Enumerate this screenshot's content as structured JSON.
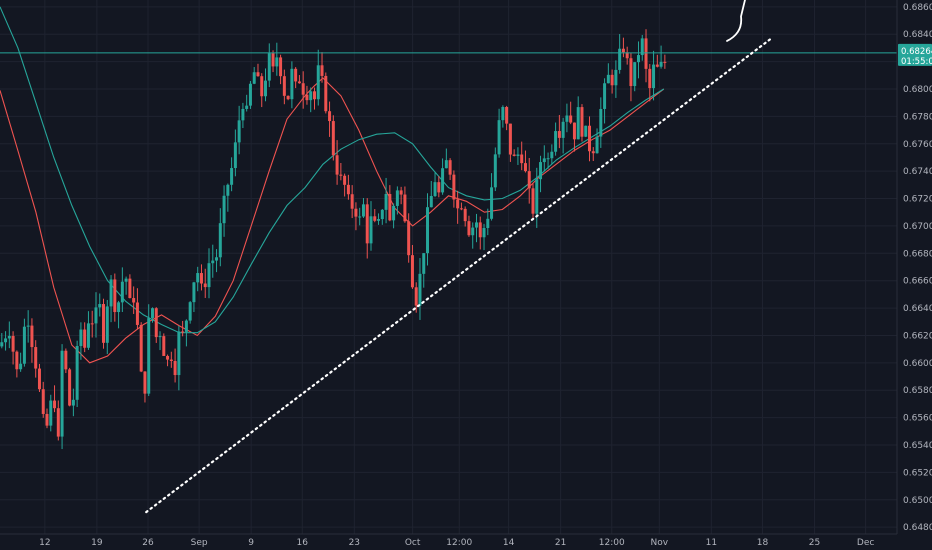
{
  "chart_data": {
    "type": "candlestick",
    "instrument_note": "",
    "y_axis": {
      "min": 0.6475,
      "max": 0.6865,
      "ticks": [
        "0.68600",
        "0.68400",
        "0.68200",
        "0.68000",
        "0.67800",
        "0.67600",
        "0.67400",
        "0.67200",
        "0.67000",
        "0.66800",
        "0.66600",
        "0.66400",
        "0.66200",
        "0.66000",
        "0.65800",
        "0.65600",
        "0.65400",
        "0.65200",
        "0.65000",
        "0.64800"
      ],
      "tick_values": [
        0.686,
        0.684,
        0.682,
        0.68,
        0.678,
        0.676,
        0.674,
        0.672,
        0.67,
        0.668,
        0.666,
        0.664,
        0.662,
        0.66,
        0.658,
        0.656,
        0.654,
        0.652,
        0.65,
        0.648
      ]
    },
    "x_axis": {
      "ticks": [
        "12",
        "19",
        "26",
        "Sep",
        "9",
        "16",
        "23",
        "Oct",
        "12:00",
        "14",
        "21",
        "12:00",
        "Nov",
        "11",
        "18",
        "25",
        "Dec"
      ],
      "tick_positions": [
        0.05,
        0.108,
        0.165,
        0.222,
        0.28,
        0.337,
        0.395,
        0.46,
        0.512,
        0.567,
        0.625,
        0.682,
        0.735,
        0.793,
        0.85,
        0.908,
        0.965
      ]
    },
    "current_price": {
      "label": "0.68264",
      "value": 0.68264,
      "countdown": "01:55:01",
      "color": "#26a69a"
    },
    "horizontal_line": {
      "value": 0.68264,
      "color": "#26a69a"
    },
    "trendline": {
      "style": "dotted",
      "color": "#ffffff",
      "start": {
        "t": 0.163,
        "price": 0.6491
      },
      "end": {
        "t": 0.86,
        "price": 0.6837
      }
    },
    "arrow_sketch": {
      "color": "#ffffff",
      "from_price": 0.6838,
      "to_price": 0.6868
    },
    "moving_averages": [
      {
        "name": "",
        "color": "#ef5350",
        "points": [
          [
            0.0,
            0.6799
          ],
          [
            0.02,
            0.6755
          ],
          [
            0.04,
            0.671
          ],
          [
            0.06,
            0.6655
          ],
          [
            0.08,
            0.6613
          ],
          [
            0.1,
            0.66
          ],
          [
            0.12,
            0.6605
          ],
          [
            0.14,
            0.6618
          ],
          [
            0.16,
            0.6628
          ],
          [
            0.18,
            0.6635
          ],
          [
            0.2,
            0.6627
          ],
          [
            0.22,
            0.662
          ],
          [
            0.24,
            0.6634
          ],
          [
            0.26,
            0.666
          ],
          [
            0.28,
            0.67
          ],
          [
            0.3,
            0.674
          ],
          [
            0.32,
            0.6778
          ],
          [
            0.34,
            0.6795
          ],
          [
            0.35,
            0.6802
          ],
          [
            0.36,
            0.6808
          ],
          [
            0.38,
            0.6795
          ],
          [
            0.4,
            0.677
          ],
          [
            0.42,
            0.674
          ],
          [
            0.44,
            0.6713
          ],
          [
            0.46,
            0.67
          ],
          [
            0.48,
            0.671
          ],
          [
            0.5,
            0.6722
          ],
          [
            0.52,
            0.6718
          ],
          [
            0.54,
            0.671
          ],
          [
            0.56,
            0.6712
          ],
          [
            0.58,
            0.6722
          ],
          [
            0.6,
            0.6735
          ],
          [
            0.62,
            0.6745
          ],
          [
            0.64,
            0.6755
          ],
          [
            0.66,
            0.6763
          ],
          [
            0.68,
            0.677
          ],
          [
            0.7,
            0.678
          ],
          [
            0.72,
            0.679
          ],
          [
            0.74,
            0.68
          ]
        ]
      },
      {
        "name": "",
        "color": "#26a69a",
        "points": [
          [
            0.0,
            0.686
          ],
          [
            0.02,
            0.683
          ],
          [
            0.04,
            0.679
          ],
          [
            0.06,
            0.675
          ],
          [
            0.08,
            0.6715
          ],
          [
            0.1,
            0.6685
          ],
          [
            0.12,
            0.666
          ],
          [
            0.14,
            0.6645
          ],
          [
            0.16,
            0.6635
          ],
          [
            0.18,
            0.6628
          ],
          [
            0.2,
            0.6622
          ],
          [
            0.22,
            0.6622
          ],
          [
            0.24,
            0.663
          ],
          [
            0.26,
            0.6648
          ],
          [
            0.28,
            0.6672
          ],
          [
            0.3,
            0.6695
          ],
          [
            0.32,
            0.6715
          ],
          [
            0.34,
            0.6728
          ],
          [
            0.36,
            0.6745
          ],
          [
            0.38,
            0.6756
          ],
          [
            0.4,
            0.6763
          ],
          [
            0.42,
            0.6767
          ],
          [
            0.44,
            0.6768
          ],
          [
            0.46,
            0.676
          ],
          [
            0.48,
            0.6743
          ],
          [
            0.5,
            0.6728
          ],
          [
            0.52,
            0.6722
          ],
          [
            0.54,
            0.6719
          ],
          [
            0.56,
            0.672
          ],
          [
            0.58,
            0.6726
          ],
          [
            0.6,
            0.6736
          ],
          [
            0.62,
            0.6748
          ],
          [
            0.64,
            0.6757
          ],
          [
            0.66,
            0.6765
          ],
          [
            0.68,
            0.6773
          ],
          [
            0.7,
            0.6783
          ],
          [
            0.72,
            0.6792
          ],
          [
            0.74,
            0.68
          ]
        ]
      }
    ],
    "price_path": [
      [
        0.0,
        0.6612
      ],
      [
        0.01,
        0.6628
      ],
      [
        0.02,
        0.6588
      ],
      [
        0.03,
        0.664
      ],
      [
        0.04,
        0.66
      ],
      [
        0.05,
        0.6545
      ],
      [
        0.06,
        0.658
      ],
      [
        0.065,
        0.654
      ],
      [
        0.07,
        0.662
      ],
      [
        0.075,
        0.658
      ],
      [
        0.08,
        0.656
      ],
      [
        0.085,
        0.66
      ],
      [
        0.09,
        0.6625
      ],
      [
        0.095,
        0.661
      ],
      [
        0.1,
        0.6642
      ],
      [
        0.105,
        0.6625
      ],
      [
        0.11,
        0.6645
      ],
      [
        0.115,
        0.662
      ],
      [
        0.12,
        0.6648
      ],
      [
        0.125,
        0.666
      ],
      [
        0.13,
        0.6635
      ],
      [
        0.135,
        0.6658
      ],
      [
        0.14,
        0.6665
      ],
      [
        0.145,
        0.664
      ],
      [
        0.15,
        0.6652
      ],
      [
        0.155,
        0.661
      ],
      [
        0.16,
        0.6565
      ],
      [
        0.165,
        0.6625
      ],
      [
        0.17,
        0.664
      ],
      [
        0.175,
        0.6615
      ],
      [
        0.18,
        0.6628
      ],
      [
        0.185,
        0.6595
      ],
      [
        0.19,
        0.661
      ],
      [
        0.195,
        0.6598
      ],
      [
        0.2,
        0.6622
      ],
      [
        0.205,
        0.6618
      ],
      [
        0.21,
        0.6645
      ],
      [
        0.215,
        0.666
      ],
      [
        0.22,
        0.6668
      ],
      [
        0.225,
        0.665
      ],
      [
        0.23,
        0.6665
      ],
      [
        0.235,
        0.6678
      ],
      [
        0.24,
        0.6672
      ],
      [
        0.245,
        0.6695
      ],
      [
        0.25,
        0.6715
      ],
      [
        0.255,
        0.6735
      ],
      [
        0.26,
        0.6745
      ],
      [
        0.265,
        0.677
      ],
      [
        0.27,
        0.6795
      ],
      [
        0.275,
        0.678
      ],
      [
        0.28,
        0.6805
      ],
      [
        0.285,
        0.6815
      ],
      [
        0.29,
        0.679
      ],
      [
        0.295,
        0.6808
      ],
      [
        0.3,
        0.682
      ],
      [
        0.305,
        0.681
      ],
      [
        0.31,
        0.683
      ],
      [
        0.315,
        0.6805
      ],
      [
        0.32,
        0.679
      ],
      [
        0.325,
        0.6812
      ],
      [
        0.33,
        0.6798
      ],
      [
        0.335,
        0.6812
      ],
      [
        0.34,
        0.6795
      ],
      [
        0.345,
        0.6805
      ],
      [
        0.35,
        0.679
      ],
      [
        0.355,
        0.6812
      ],
      [
        0.36,
        0.68
      ],
      [
        0.365,
        0.6785
      ],
      [
        0.37,
        0.676
      ],
      [
        0.375,
        0.6745
      ],
      [
        0.38,
        0.6732
      ],
      [
        0.385,
        0.6728
      ],
      [
        0.39,
        0.671
      ],
      [
        0.395,
        0.672
      ],
      [
        0.4,
        0.67
      ],
      [
        0.405,
        0.6715
      ],
      [
        0.41,
        0.669
      ],
      [
        0.415,
        0.6708
      ],
      [
        0.42,
        0.669
      ],
      [
        0.425,
        0.6712
      ],
      [
        0.43,
        0.6728
      ],
      [
        0.435,
        0.67
      ],
      [
        0.44,
        0.672
      ],
      [
        0.445,
        0.6735
      ],
      [
        0.45,
        0.6705
      ],
      [
        0.455,
        0.669
      ],
      [
        0.46,
        0.6662
      ],
      [
        0.465,
        0.6645
      ],
      [
        0.47,
        0.6672
      ],
      [
        0.475,
        0.67
      ],
      [
        0.48,
        0.6718
      ],
      [
        0.485,
        0.6735
      ],
      [
        0.49,
        0.672
      ],
      [
        0.495,
        0.6742
      ],
      [
        0.5,
        0.6748
      ],
      [
        0.505,
        0.673
      ],
      [
        0.51,
        0.6712
      ],
      [
        0.515,
        0.672
      ],
      [
        0.52,
        0.6705
      ],
      [
        0.525,
        0.6695
      ],
      [
        0.53,
        0.6708
      ],
      [
        0.535,
        0.6688
      ],
      [
        0.54,
        0.67
      ],
      [
        0.545,
        0.6712
      ],
      [
        0.55,
        0.674
      ],
      [
        0.555,
        0.6768
      ],
      [
        0.56,
        0.6785
      ],
      [
        0.565,
        0.677
      ],
      [
        0.57,
        0.6752
      ],
      [
        0.575,
        0.6745
      ],
      [
        0.58,
        0.676
      ],
      [
        0.585,
        0.674
      ],
      [
        0.59,
        0.672
      ],
      [
        0.595,
        0.6712
      ],
      [
        0.6,
        0.6735
      ],
      [
        0.605,
        0.676
      ],
      [
        0.61,
        0.6745
      ],
      [
        0.615,
        0.676
      ],
      [
        0.62,
        0.6778
      ],
      [
        0.625,
        0.677
      ],
      [
        0.63,
        0.6788
      ],
      [
        0.635,
        0.678
      ],
      [
        0.64,
        0.6768
      ],
      [
        0.645,
        0.6782
      ],
      [
        0.65,
        0.677
      ],
      [
        0.655,
        0.6762
      ],
      [
        0.66,
        0.6755
      ],
      [
        0.665,
        0.677
      ],
      [
        0.67,
        0.6785
      ],
      [
        0.675,
        0.68
      ],
      [
        0.68,
        0.6812
      ],
      [
        0.685,
        0.6805
      ],
      [
        0.69,
        0.682
      ],
      [
        0.695,
        0.6832
      ],
      [
        0.7,
        0.6815
      ],
      [
        0.705,
        0.6802
      ],
      [
        0.71,
        0.6822
      ],
      [
        0.715,
        0.6838
      ],
      [
        0.72,
        0.6812
      ],
      [
        0.725,
        0.6798
      ],
      [
        0.73,
        0.682
      ],
      [
        0.735,
        0.6808
      ],
      [
        0.74,
        0.6826
      ],
      [
        0.745,
        0.68
      ]
    ]
  }
}
